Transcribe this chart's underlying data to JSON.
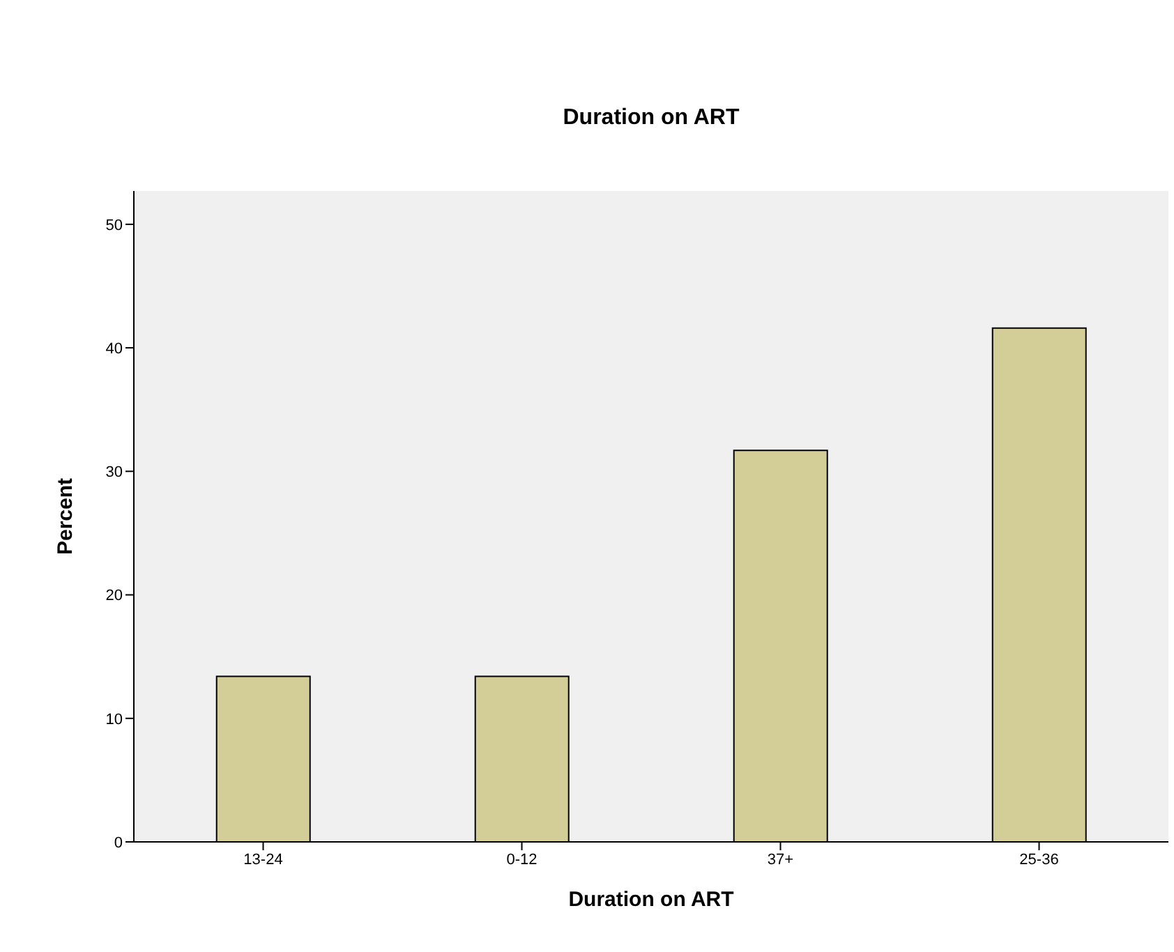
{
  "chart_data": {
    "type": "bar",
    "title": "Duration on ART",
    "xlabel": "Duration on ART",
    "ylabel": "Percent",
    "categories": [
      "13-24",
      "0-12",
      "37+",
      "25-36"
    ],
    "values": [
      13.4,
      13.4,
      31.7,
      41.6
    ],
    "color": "#d3ce97",
    "ylim": [
      0,
      52.7
    ],
    "yticks": [
      0,
      10,
      20,
      30,
      40,
      50
    ],
    "grid": false
  }
}
